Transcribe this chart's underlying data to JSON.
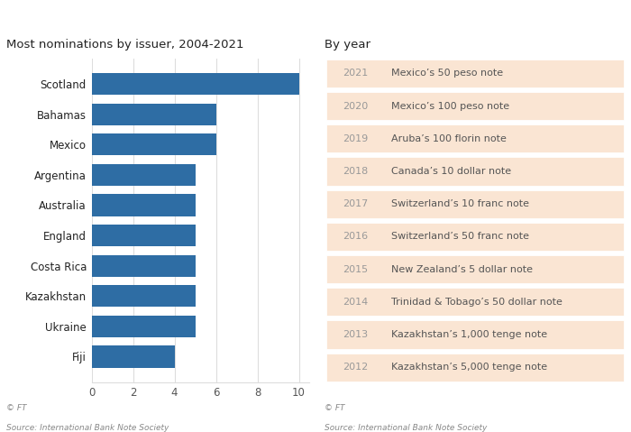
{
  "title_left": "Most nominations by issuer, 2004-2021",
  "title_right": "By year",
  "bar_categories": [
    "Scotland",
    "Bahamas",
    "Mexico",
    "Argentina",
    "Australia",
    "England",
    "Costa Rica",
    "Kazakhstan",
    "Ukraine",
    "Fiji"
  ],
  "bar_values": [
    10,
    6,
    6,
    5,
    5,
    5,
    5,
    5,
    5,
    4
  ],
  "bar_color": "#2E6DA4",
  "background_color": "#ffffff",
  "xlim": [
    0,
    10.5
  ],
  "xticks": [
    0,
    2,
    4,
    6,
    8,
    10
  ],
  "source_text_line1": "Source: International Bank Note Society",
  "source_text_line2": "© FT",
  "years": [
    "2021",
    "2020",
    "2019",
    "2018",
    "2017",
    "2016",
    "2015",
    "2014",
    "2013",
    "2012"
  ],
  "winners": [
    "Mexico’s 50 peso note",
    "Mexico’s 100 peso note",
    "Aruba’s 100 florin note",
    "Canada’s 10 dollar note",
    "Switzerland’s 10 franc note",
    "Switzerland’s 50 franc note",
    "New Zealand’s 5 dollar note",
    "Trinidad & Tobago’s 50 dollar note",
    "Kazakhstan’s 1,000 tenge note",
    "Kazakhstan’s 5,000 tenge note"
  ],
  "table_bg_color": "#FAE5D3",
  "table_border_color": "#ffffff",
  "year_color": "#999999",
  "winner_color": "#555555",
  "title_color": "#222222",
  "axis_label_color": "#555555",
  "grid_color": "#dddddd",
  "source_color": "#888888"
}
